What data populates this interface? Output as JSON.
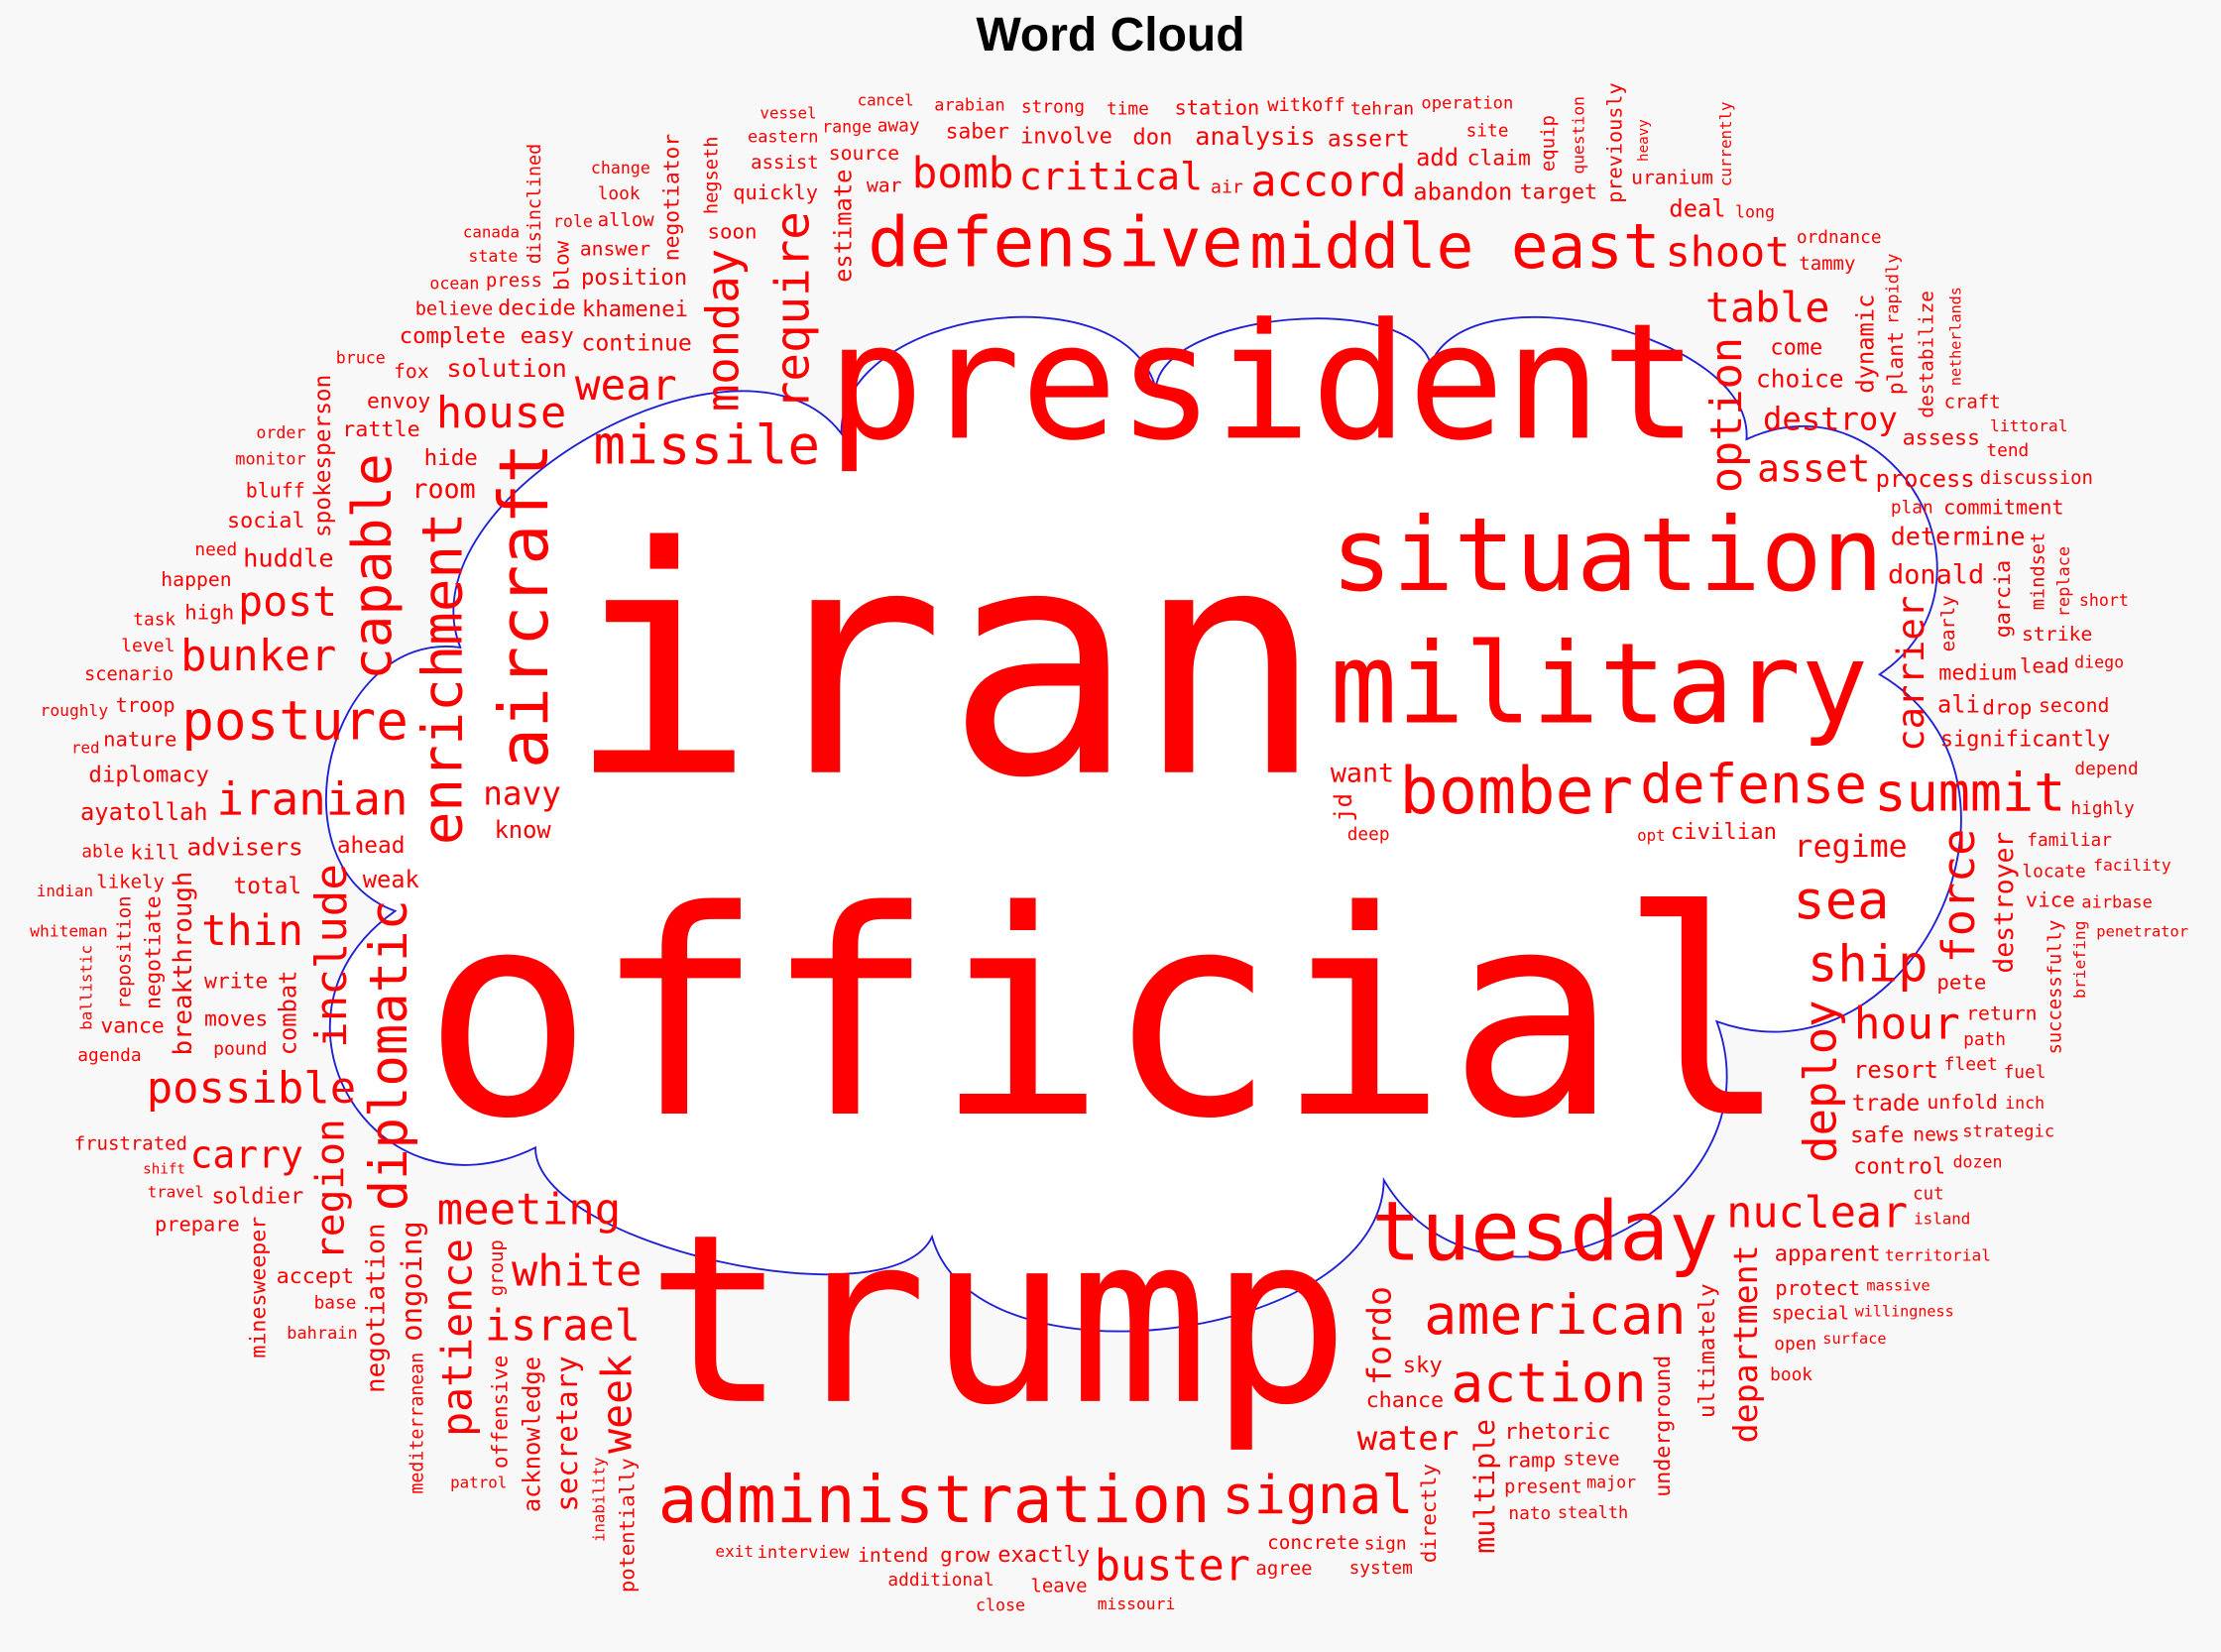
{
  "title": "Word Cloud",
  "chart_data": {
    "type": "wordcloud",
    "title": "Word Cloud",
    "word_color": "#ff0000",
    "outline_color": "#1f1fd6",
    "cloud_fill": "#ffffff",
    "background": "#f8f8f8",
    "words": [
      "iran",
      "official",
      "trump",
      "president",
      "situation",
      "military",
      "middle east",
      "defensive",
      "administration",
      "tuesday",
      "bomber",
      "summit",
      "american",
      "action",
      "signal",
      "defense",
      "iranian",
      "posture",
      "missile",
      "sea",
      "nuclear",
      "possible",
      "meeting",
      "shoot",
      "table",
      "critical",
      "accord",
      "house",
      "post",
      "bunker",
      "wear",
      "bomb",
      "white",
      "water",
      "ship",
      "hour",
      "regime",
      "asset",
      "destroy",
      "israel",
      "buster",
      "carry",
      "thin",
      "navy",
      "continue",
      "choice",
      "analysis",
      "assert",
      "uranium",
      "deal",
      "site",
      "add",
      "witkoff",
      "tehran",
      "saber",
      "arabian",
      "target",
      "operation",
      "don",
      "involve",
      "strong",
      "cancel",
      "assist",
      "eastern",
      "look",
      "change",
      "state",
      "soon",
      "role",
      "away",
      "hide",
      "answer",
      "range",
      "source",
      "war",
      "bruce",
      "khamenei",
      "position",
      "envoy",
      "high",
      "rattle",
      "ahead",
      "write",
      "red",
      "monitor",
      "moves",
      "decide",
      "ocean",
      "quickly",
      "dozen",
      "strategic",
      "inch",
      "pete",
      "diego",
      "locate",
      "want",
      "commitment",
      "donald",
      "significantly",
      "familiar",
      "facility",
      "medium",
      "second",
      "drop",
      "depend",
      "ali",
      "short",
      "lead",
      "determine",
      "strike",
      "littoral",
      "tend",
      "abandon",
      "claim",
      "station",
      "time",
      "long",
      "assess",
      "process",
      "discussion",
      "plan",
      "air",
      "come",
      "craft",
      "ordnance",
      "tammy",
      "solution",
      "easy",
      "canada",
      "press",
      "allow",
      "believe",
      "vessel",
      "complete",
      "order",
      "fox",
      "huddle",
      "social",
      "room",
      "bluff",
      "need",
      "task",
      "happen",
      "nature",
      "level",
      "roughly",
      "scenario",
      "know",
      "advisers",
      "diplomacy",
      "able",
      "indian",
      "troop",
      "kill",
      "pound",
      "total",
      "likely",
      "agenda",
      "vance",
      "frustrated",
      "prepare",
      "bahrain",
      "ayatollah",
      "whiteman",
      "soldier",
      "accept",
      "shift",
      "weak",
      "travel",
      "interview",
      "base",
      "exit",
      "additional",
      "patrol",
      "intend",
      "missouri",
      "exactly",
      "close",
      "grow",
      "leave",
      "concrete",
      "present",
      "system",
      "chance",
      "agree",
      "ramp",
      "stealth",
      "sky",
      "open",
      "steve",
      "surface",
      "territorial",
      "cut",
      "opt",
      "book",
      "willingness",
      "special",
      "sign",
      "nato",
      "rhetoric",
      "major",
      "apparent",
      "massive",
      "protect",
      "civilian",
      "control",
      "path",
      "fuel",
      "resort",
      "penetrator",
      "vice",
      "highly",
      "airbase",
      "return",
      "fleet",
      "trade",
      "island",
      "deep",
      "safe",
      "news",
      "unfold",
      "aircraft",
      "capable",
      "monday",
      "negotiator",
      "disinclined",
      "hegseth",
      "blow",
      "spokesperson",
      "enrichment",
      "include",
      "department",
      "require",
      "option",
      "previously",
      "destabilize",
      "estimate",
      "question",
      "equip",
      "heavy",
      "currently",
      "plant",
      "rapidly",
      "dynamic",
      "mindset",
      "netherlands",
      "early",
      "garcia",
      "replace",
      "jd",
      "deploy",
      "carrier",
      "force",
      "destroyer",
      "successfully",
      "briefing",
      "diplomatic",
      "negotiate",
      "reposition",
      "combat",
      "minesweeper",
      "negotiation",
      "group",
      "patience",
      "region",
      "breakthrough",
      "fordo",
      "offensive",
      "ballistic",
      "week",
      "potentially",
      "inability",
      "mediterranean",
      "secretary",
      "ongoing",
      "acknowledge",
      "underground",
      "directly",
      "multiple",
      "ultimately"
    ]
  }
}
